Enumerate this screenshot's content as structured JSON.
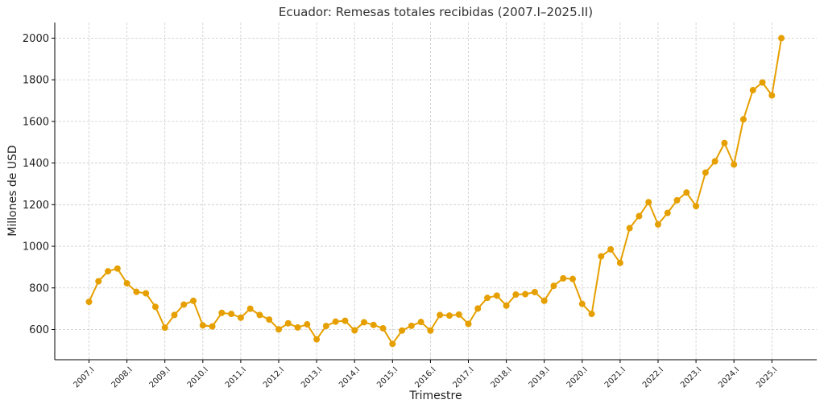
{
  "chart_data": {
    "type": "line",
    "title": "Ecuador: Remesas totales recibidas (2007.I–2025.II)",
    "xlabel": "Trimestre",
    "ylabel": "Millones de USD",
    "ylim": [
      455,
      2075
    ],
    "yticks": [
      600,
      800,
      1000,
      1200,
      1400,
      1600,
      1800,
      2000
    ],
    "grid": true,
    "line_color": "#E69F00",
    "x_tick_labels": [
      "2007.I",
      "2008.I",
      "2009.I",
      "2010.I",
      "2011.I",
      "2012.I",
      "2013.I",
      "2014.I",
      "2015.I",
      "2016.I",
      "2017.I",
      "2018.I",
      "2019.I",
      "2020.I",
      "2021.I",
      "2022.I",
      "2023.I",
      "2024.I",
      "2025.I"
    ],
    "x": [
      "2007.I",
      "2007.II",
      "2007.III",
      "2007.IV",
      "2008.I",
      "2008.II",
      "2008.III",
      "2008.IV",
      "2009.I",
      "2009.II",
      "2009.III",
      "2009.IV",
      "2010.I",
      "2010.II",
      "2010.III",
      "2010.IV",
      "2011.I",
      "2011.II",
      "2011.III",
      "2011.IV",
      "2012.I",
      "2012.II",
      "2012.III",
      "2012.IV",
      "2013.I",
      "2013.II",
      "2013.III",
      "2013.IV",
      "2014.I",
      "2014.II",
      "2014.III",
      "2014.IV",
      "2015.I",
      "2015.II",
      "2015.III",
      "2015.IV",
      "2016.I",
      "2016.II",
      "2016.III",
      "2016.IV",
      "2017.I",
      "2017.II",
      "2017.III",
      "2017.IV",
      "2018.I",
      "2018.II",
      "2018.III",
      "2018.IV",
      "2019.I",
      "2019.II",
      "2019.III",
      "2019.IV",
      "2020.I",
      "2020.II",
      "2020.III",
      "2020.IV",
      "2021.I",
      "2021.II",
      "2021.III",
      "2021.IV",
      "2022.I",
      "2022.II",
      "2022.III",
      "2022.IV",
      "2023.I",
      "2023.II",
      "2023.III",
      "2023.IV",
      "2024.I",
      "2024.II",
      "2024.III",
      "2024.IV",
      "2025.I",
      "2025.II"
    ],
    "series": [
      {
        "values": [
          733,
          832,
          880,
          893,
          822,
          781,
          774,
          709,
          609,
          670,
          720,
          738,
          620,
          615,
          680,
          675,
          657,
          700,
          670,
          648,
          601,
          630,
          610,
          625,
          553,
          617,
          638,
          642,
          596,
          635,
          622,
          606,
          531,
          595,
          618,
          636,
          595,
          670,
          667,
          672,
          627,
          701,
          752,
          763,
          715,
          768,
          770,
          780,
          738,
          810,
          846,
          843,
          723,
          675,
          952,
          985,
          920,
          1087,
          1145,
          1212,
          1105,
          1160,
          1221,
          1258,
          1193,
          1354,
          1408,
          1496,
          1393,
          1610,
          1750,
          1787,
          1725,
          2000
        ]
      }
    ]
  }
}
